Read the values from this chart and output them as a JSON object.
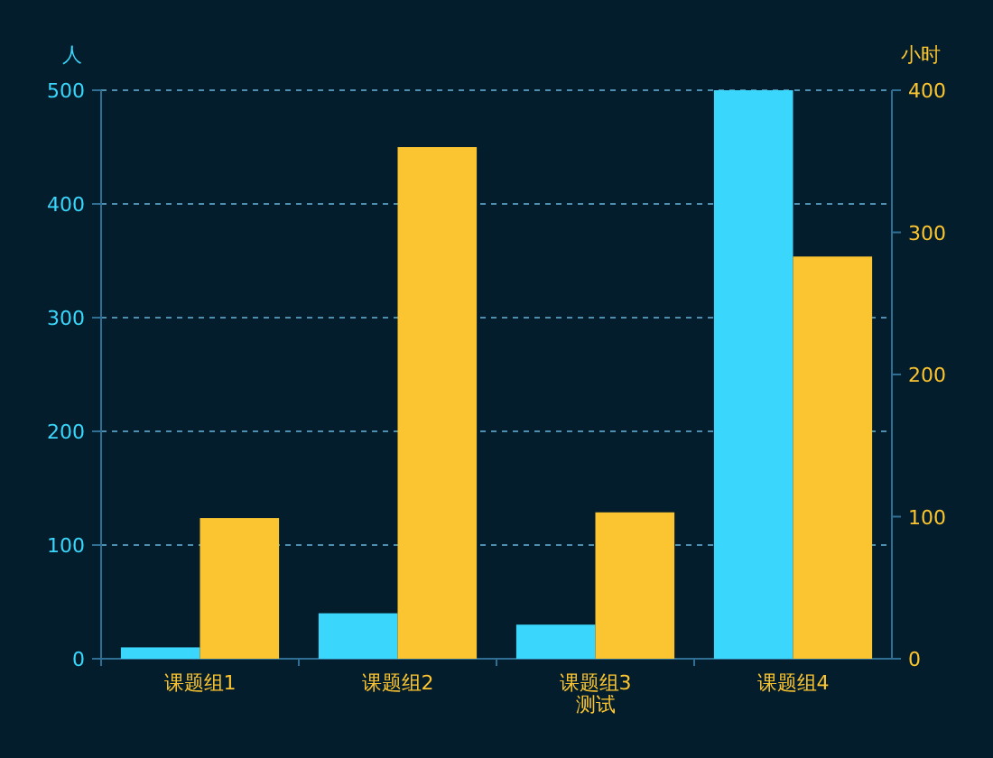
{
  "chart_data": {
    "type": "bar",
    "categories": [
      "课题组1",
      "课题组2",
      "课题组3\n测试",
      "课题组4"
    ],
    "series": [
      {
        "color": "#3ad6fb",
        "values": [
          10,
          40,
          30,
          500
        ]
      },
      {
        "color": "#fbc531",
        "values": [
          99,
          360,
          103,
          283
        ],
        "axis": "y2"
      }
    ],
    "ylabel": "人",
    "y2label": "小时",
    "ylim": [
      0,
      500
    ],
    "yticks": [
      0,
      100,
      200,
      300,
      400,
      500
    ],
    "y2lim": [
      0,
      400
    ],
    "y2ticks": [
      0,
      100,
      200,
      300,
      400
    ],
    "grid": "y"
  }
}
